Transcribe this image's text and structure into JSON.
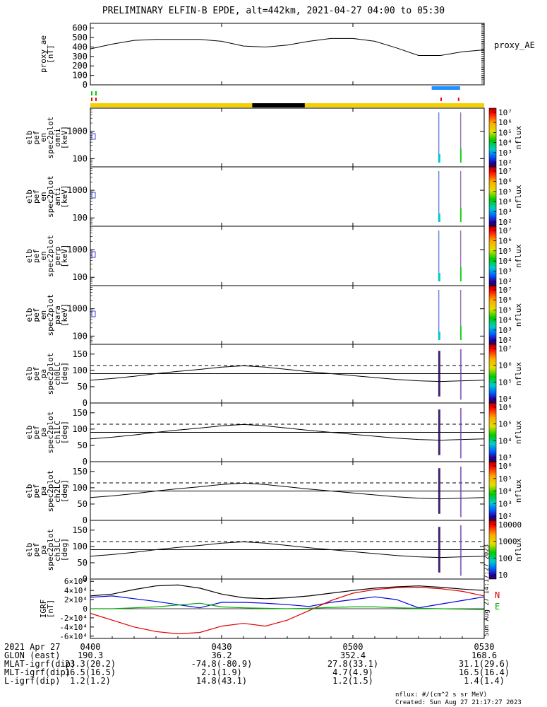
{
  "title": "PRELIMINARY ELFIN-B EPDE, alt=442km, 2021-04-27 04:00 to 05:30",
  "colors": {
    "bar_yellow": "#f5d000",
    "bar_black": "#000000",
    "bar_blue": "#1e90ff",
    "tick_green": "#00cc00",
    "tick_red": "#ff0000",
    "grf_black": "#000000",
    "grf_blue": "#0000dd",
    "grf_red": "#dd0000",
    "grf_green": "#00aa00"
  },
  "chart_data": [
    {
      "panel": "proxy_ae",
      "type": "line",
      "ylabel_lines": [
        "proxy_ae",
        "[nT]"
      ],
      "right_label": "proxy_AE",
      "ylim": [
        0,
        650
      ],
      "yticks": [
        "0",
        "100",
        "200",
        "300",
        "400",
        "500",
        "600"
      ],
      "x_minutes": [
        0,
        5,
        10,
        15,
        20,
        25,
        30,
        35,
        40,
        45,
        50,
        55,
        60,
        65,
        70,
        75,
        80,
        85,
        90
      ],
      "values": [
        380,
        430,
        470,
        480,
        480,
        480,
        460,
        410,
        400,
        420,
        460,
        490,
        490,
        460,
        390,
        310,
        310,
        350,
        370
      ]
    },
    {
      "panel": "spec_omni",
      "type": "heatmap",
      "ylabel_lines": [
        "elb",
        "pef",
        "en",
        "spec2plot",
        "omni",
        "[keV]"
      ],
      "ylog": [
        50,
        7000
      ],
      "yticks": [
        "100",
        "1000"
      ],
      "cbar_ticks": [
        "10⁷",
        "10⁶",
        "10⁵",
        "10⁴",
        "10³",
        "10²"
      ],
      "cbar_label": "nflux"
    },
    {
      "panel": "spec_anti",
      "type": "heatmap",
      "ylabel_lines": [
        "elb",
        "pef",
        "en",
        "spec2plot",
        "anti",
        "[keV]"
      ],
      "ylog": [
        50,
        7000
      ],
      "yticks": [
        "100",
        "1000"
      ],
      "cbar_ticks": [
        "10⁷",
        "10⁶",
        "10⁵",
        "10⁴",
        "10³",
        "10²"
      ],
      "cbar_label": "nflux"
    },
    {
      "panel": "spec_perp",
      "type": "heatmap",
      "ylabel_lines": [
        "elb",
        "pef",
        "en",
        "spec2plot",
        "perp",
        "[keV]"
      ],
      "ylog": [
        50,
        7000
      ],
      "yticks": [
        "100",
        "1000"
      ],
      "cbar_ticks": [
        "10⁷",
        "10⁶",
        "10⁵",
        "10⁴",
        "10³",
        "10²"
      ],
      "cbar_label": "nflux"
    },
    {
      "panel": "spec_para",
      "type": "heatmap",
      "ylabel_lines": [
        "elb",
        "pef",
        "en",
        "spec2plot",
        "para",
        "[keV]"
      ],
      "ylog": [
        50,
        7000
      ],
      "yticks": [
        "100",
        "1000"
      ],
      "cbar_ticks": [
        "10⁷",
        "10⁶",
        "10⁵",
        "10⁴",
        "10³",
        "10²"
      ],
      "cbar_label": "nflux"
    },
    {
      "panel": "pa_ch0",
      "type": "heatmap",
      "ylabel_lines": [
        "elb",
        "pef",
        "pa",
        "spec2plot",
        "ch0LC",
        "[deg]"
      ],
      "ylim": [
        0,
        180
      ],
      "yticks": [
        "0",
        "50",
        "100",
        "150"
      ],
      "cbar_ticks": [
        "10⁷",
        "10⁶",
        "10⁵",
        "10⁴"
      ],
      "cbar_label": "nflux"
    },
    {
      "panel": "pa_ch1",
      "type": "heatmap",
      "ylabel_lines": [
        "elb",
        "pef",
        "pa",
        "spec2plot",
        "ch1LC",
        "[deg]"
      ],
      "ylim": [
        0,
        180
      ],
      "yticks": [
        "0",
        "50",
        "100",
        "150"
      ],
      "cbar_ticks": [
        "10⁶",
        "10⁵",
        "10⁴",
        "10³"
      ],
      "cbar_label": "nflux"
    },
    {
      "panel": "pa_ch2",
      "type": "heatmap",
      "ylabel_lines": [
        "elb",
        "pef",
        "pa",
        "spec2plot",
        "ch2LC",
        "[deg]"
      ],
      "ylim": [
        0,
        180
      ],
      "yticks": [
        "0",
        "50",
        "100",
        "150"
      ],
      "cbar_ticks": [
        "10⁶",
        "10⁵",
        "10⁴",
        "10³",
        "10²"
      ],
      "cbar_label": "nflux"
    },
    {
      "panel": "pa_ch3",
      "type": "heatmap",
      "ylabel_lines": [
        "elb",
        "pef",
        "pa",
        "spec2plot",
        "ch3LC",
        "[deg]"
      ],
      "ylim": [
        0,
        180
      ],
      "yticks": [
        "0",
        "50",
        "100",
        "150"
      ],
      "cbar_ticks": [
        "10000",
        "1000",
        "100",
        "10"
      ],
      "cbar_label": "nflux"
    },
    {
      "panel": "igrf",
      "type": "line",
      "ylabel_lines": [
        "IGRF",
        "[nT]"
      ],
      "ylim": [
        -65000,
        65000
      ],
      "yticks": [
        "-6×10⁴",
        "-4×10⁴",
        "-2×10⁴",
        "0",
        "2×10⁴",
        "4×10⁴",
        "6×10⁴"
      ],
      "right_labels": [
        "N",
        "E"
      ],
      "x_minutes": [
        0,
        5,
        10,
        15,
        20,
        25,
        30,
        35,
        40,
        45,
        50,
        55,
        60,
        65,
        70,
        75,
        80,
        85,
        90
      ],
      "series": [
        {
          "values": [
            28000,
            32000,
            42000,
            50000,
            52000,
            45000,
            32000,
            24000,
            22000,
            24000,
            28000,
            34000,
            40000,
            45000,
            48000,
            50000,
            47000,
            43000,
            40000
          ]
        },
        {
          "values": [
            25000,
            28000,
            22000,
            16000,
            9000,
            2000,
            14000,
            14000,
            12000,
            9000,
            5000,
            14000,
            20000,
            26000,
            20000,
            2000,
            10000,
            18000,
            26000
          ]
        },
        {
          "values": [
            -10000,
            -25000,
            -40000,
            -50000,
            -55000,
            -52000,
            -38000,
            -32000,
            -38000,
            -25000,
            -4000,
            18000,
            34000,
            42000,
            46000,
            47000,
            44000,
            38000,
            28000
          ]
        },
        {
          "values": [
            0,
            0,
            2000,
            4000,
            8000,
            12000,
            4000,
            2000,
            1000,
            0,
            1000,
            3000,
            4000,
            4000,
            2000,
            1000,
            0,
            -1000,
            -2000
          ]
        }
      ]
    }
  ],
  "side_stamp": "Sun Aug 27 14:17:27 2023",
  "xticks": [
    "0400",
    "0430",
    "0500",
    "0530"
  ],
  "ephemeris": [
    {
      "label": "2021 Apr 27",
      "values": [
        "0400",
        "0430",
        "0500",
        "0530"
      ]
    },
    {
      "label": "GLON (east)",
      "values": [
        "190.3",
        "36.2",
        "352.4",
        "168.6"
      ]
    },
    {
      "label": "MLAT-igrf(dip)",
      "values": [
        "23.3(20.2)",
        "-74.8(-80.9)",
        "27.8(33.1)",
        "31.1(29.6)"
      ]
    },
    {
      "label": "MLT-igrf(dip)",
      "values": [
        "16.5(16.5)",
        "2.1(1.9)",
        "4.7(4.9)",
        "16.5(16.4)"
      ]
    },
    {
      "label": "L-igrf(dip)",
      "values": [
        "1.2(1.2)",
        "14.8(43.1)",
        "1.2(1.5)",
        "1.4(1.4)"
      ]
    }
  ],
  "footer": {
    "units": "nflux: #/(cm^2 s sr MeV)",
    "created": "Created: Sun Aug 27 21:17:27 2023"
  }
}
